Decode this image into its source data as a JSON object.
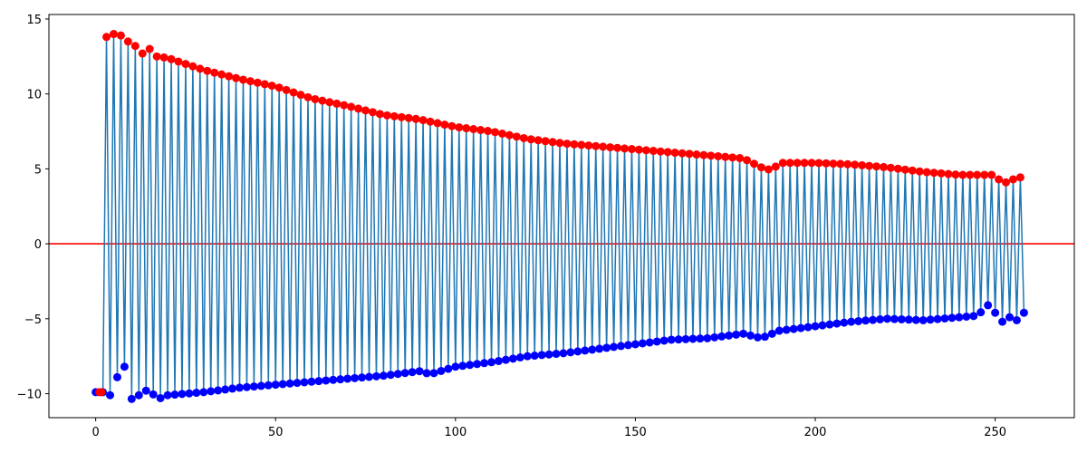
{
  "chart_data": {
    "type": "line",
    "title": "",
    "xlabel": "",
    "ylabel": "",
    "xlim": [
      -13,
      272
    ],
    "ylim": [
      -11.6,
      15.3
    ],
    "x_ticks": [
      0,
      50,
      100,
      150,
      200,
      250
    ],
    "x_tick_labels": [
      "0",
      "50",
      "100",
      "150",
      "200",
      "250"
    ],
    "y_ticks": [
      -10,
      -5,
      0,
      5,
      10,
      15
    ],
    "y_tick_labels": [
      "−10",
      "−5",
      "0",
      "5",
      "10",
      "15"
    ],
    "grid": false,
    "legend": "none",
    "n_points": 259,
    "series": [
      {
        "kind": "alternating-line",
        "color": "#1f77b4",
        "envelope_upper": {
          "x": [
            1,
            3,
            5,
            7,
            9,
            11,
            13,
            15,
            17,
            20,
            30,
            40,
            50,
            60,
            70,
            80,
            90,
            100,
            110,
            120,
            130,
            140,
            150,
            160,
            170,
            180,
            185,
            188,
            190,
            200,
            210,
            220,
            230,
            240,
            245,
            250,
            252,
            255,
            258
          ],
          "y": [
            -9.9,
            13.8,
            14.0,
            13.9,
            13.5,
            13.2,
            12.7,
            13.0,
            12.5,
            12.4,
            11.6,
            11.0,
            10.5,
            9.7,
            9.2,
            8.6,
            8.3,
            7.8,
            7.5,
            7.0,
            6.7,
            6.5,
            6.3,
            6.1,
            5.9,
            5.7,
            5.1,
            4.9,
            5.4,
            5.4,
            5.3,
            5.1,
            4.8,
            4.6,
            4.6,
            4.6,
            4.0,
            4.3,
            4.5
          ]
        },
        "envelope_lower": {
          "x": [
            0,
            2,
            4,
            5,
            7,
            8,
            9,
            11,
            13,
            15,
            17,
            20,
            30,
            40,
            50,
            60,
            70,
            80,
            90,
            93,
            100,
            110,
            120,
            130,
            140,
            150,
            160,
            170,
            180,
            185,
            190,
            200,
            210,
            220,
            230,
            240,
            245,
            248,
            250,
            252,
            254,
            256,
            258
          ],
          "y": [
            -9.9,
            -9.9,
            -10.1,
            -9.5,
            -8.3,
            -8.2,
            -10.4,
            -10.3,
            -9.9,
            -9.7,
            -10.4,
            -10.1,
            -9.9,
            -9.6,
            -9.4,
            -9.2,
            -9.0,
            -8.8,
            -8.5,
            -8.7,
            -8.2,
            -7.9,
            -7.5,
            -7.3,
            -7.0,
            -6.7,
            -6.4,
            -6.3,
            -6.0,
            -6.3,
            -5.8,
            -5.5,
            -5.2,
            -5.0,
            -5.1,
            -4.9,
            -4.8,
            -4.1,
            -4.6,
            -5.2,
            -4.9,
            -5.1,
            -4.6
          ]
        }
      },
      {
        "kind": "peak-markers",
        "color": "#ff0000",
        "marker": "circle"
      },
      {
        "kind": "trough-markers",
        "color": "#0000ff",
        "marker": "circle"
      }
    ],
    "hlines": [
      {
        "y": 0,
        "color": "#ff0000"
      }
    ]
  }
}
